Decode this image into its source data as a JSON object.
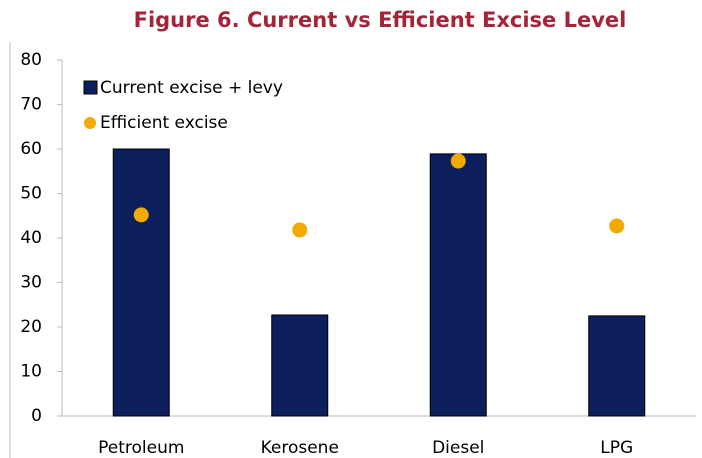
{
  "chart_data": {
    "type": "bar",
    "title": "Figure 6. Current vs Efficient Excise Level",
    "categories": [
      "Petroleum",
      "Kerosene",
      "Diesel",
      "LPG"
    ],
    "series": [
      {
        "name": "Current excise + levy",
        "type": "bar",
        "color": "#0c1f5c",
        "values": [
          60,
          22.7,
          58.9,
          22.5
        ]
      },
      {
        "name": "Efficient excise",
        "type": "scatter",
        "color": "#f0aa00",
        "values": [
          45.2,
          41.8,
          57.3,
          42.7
        ]
      }
    ],
    "ylim": [
      0,
      80
    ],
    "yticks": [
      0,
      10,
      20,
      30,
      40,
      50,
      60,
      70,
      80
    ],
    "grid": false,
    "legend": "top-left"
  }
}
